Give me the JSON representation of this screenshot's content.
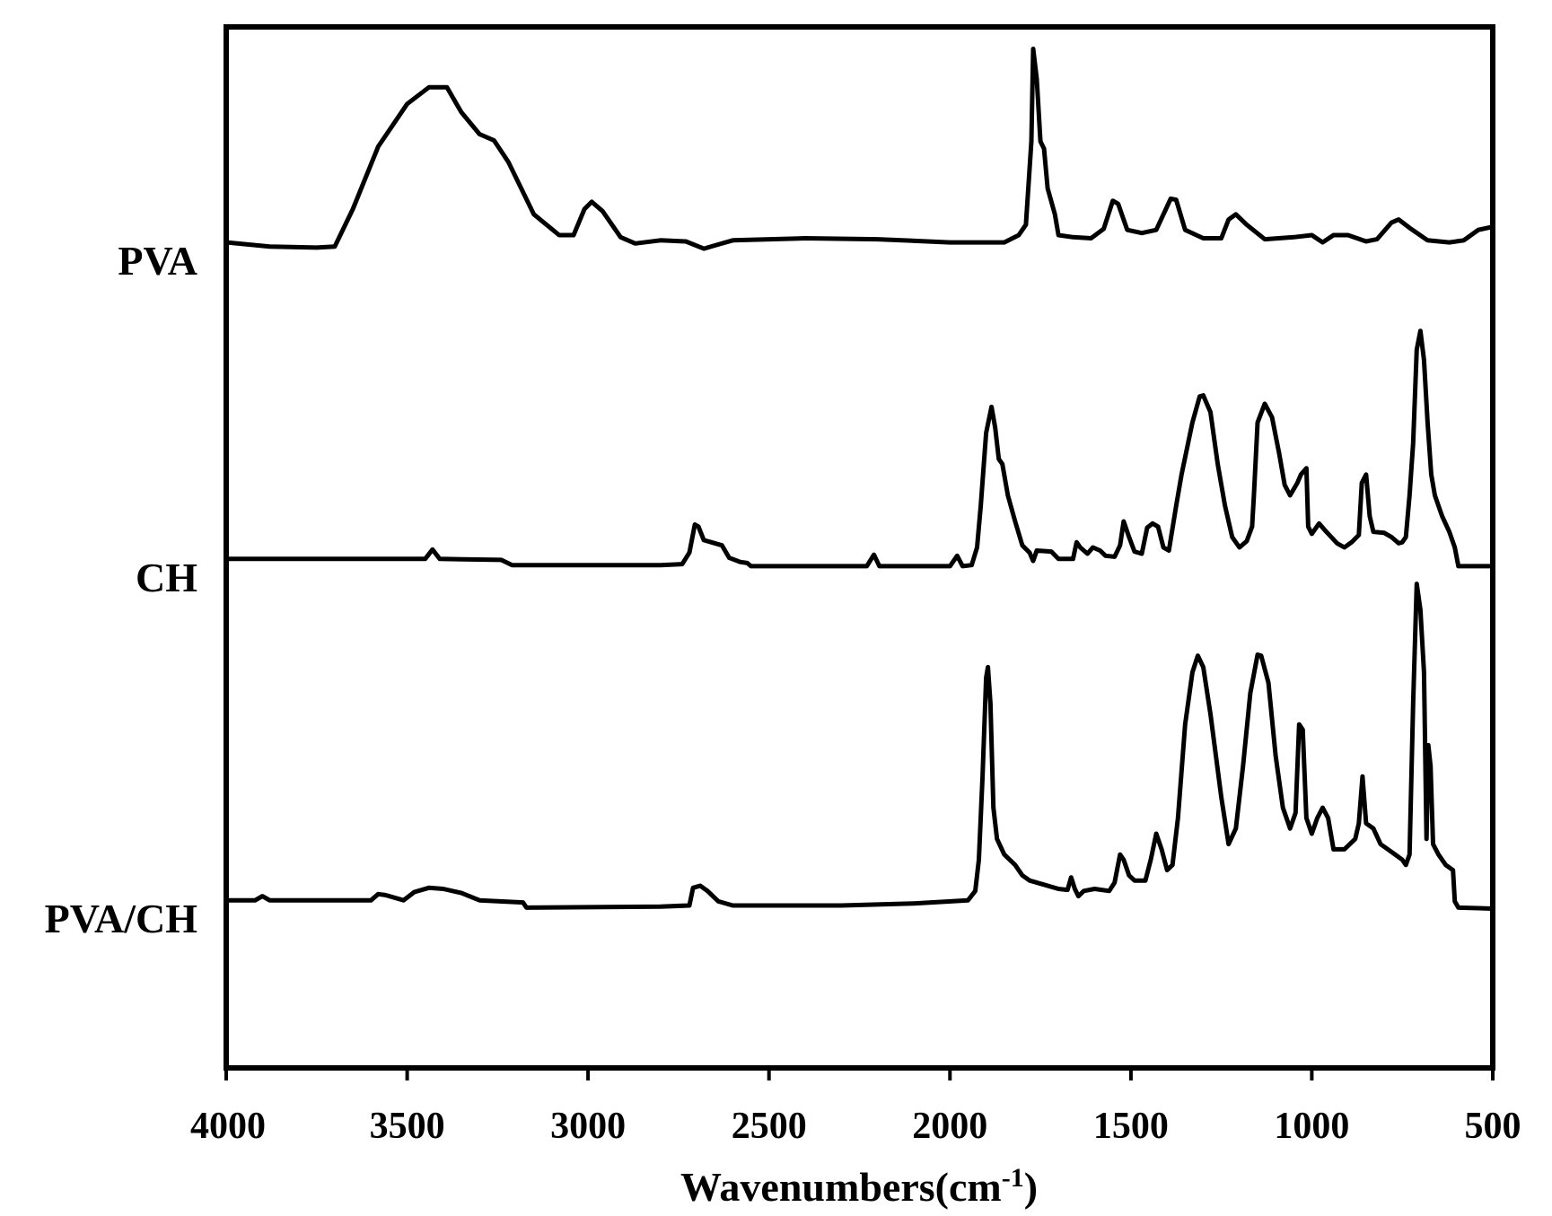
{
  "chart_data": {
    "type": "line",
    "title": "",
    "xlabel": {
      "main": "Wavenumbers(cm",
      "superscript": "-1",
      "close": ")"
    },
    "ylabel": "",
    "xlim": [
      4000,
      500
    ],
    "x_reversed": true,
    "xticks": [
      4000,
      3500,
      3000,
      2500,
      2000,
      1500,
      1000,
      500
    ],
    "xtick_labels": [
      "4000",
      "3500",
      "3000",
      "2500",
      "2000",
      "1500",
      "1000",
      "500"
    ],
    "ylim": [
      0,
      100
    ],
    "y_ticks_shown": false,
    "grid": false,
    "legend": "none",
    "series": [
      {
        "name": "PVA",
        "color": "#000000",
        "points": [
          [
            4000,
            79.3
          ],
          [
            3880,
            78.9
          ],
          [
            3750,
            78.8
          ],
          [
            3700,
            78.9
          ],
          [
            3650,
            82.5
          ],
          [
            3580,
            88.5
          ],
          [
            3500,
            92.6
          ],
          [
            3440,
            94.2
          ],
          [
            3390,
            94.2
          ],
          [
            3350,
            91.8
          ],
          [
            3300,
            89.7
          ],
          [
            3260,
            89.1
          ],
          [
            3220,
            87.0
          ],
          [
            3150,
            82.0
          ],
          [
            3080,
            80.0
          ],
          [
            3040,
            80.0
          ],
          [
            3010,
            82.5
          ],
          [
            2990,
            83.2
          ],
          [
            2960,
            82.3
          ],
          [
            2910,
            79.8
          ],
          [
            2870,
            79.2
          ],
          [
            2800,
            79.5
          ],
          [
            2730,
            79.4
          ],
          [
            2680,
            78.7
          ],
          [
            2640,
            79.1
          ],
          [
            2600,
            79.5
          ],
          [
            2400,
            79.7
          ],
          [
            2200,
            79.6
          ],
          [
            2000,
            79.3
          ],
          [
            1850,
            79.3
          ],
          [
            1810,
            80.0
          ],
          [
            1790,
            81.0
          ],
          [
            1775,
            89.0
          ],
          [
            1770,
            97.9
          ],
          [
            1760,
            95.0
          ],
          [
            1750,
            89.0
          ],
          [
            1740,
            88.3
          ],
          [
            1730,
            84.5
          ],
          [
            1710,
            82.0
          ],
          [
            1700,
            80.0
          ],
          [
            1660,
            79.8
          ],
          [
            1610,
            79.7
          ],
          [
            1575,
            80.6
          ],
          [
            1550,
            83.3
          ],
          [
            1535,
            83.0
          ],
          [
            1510,
            80.5
          ],
          [
            1470,
            80.2
          ],
          [
            1430,
            80.5
          ],
          [
            1390,
            83.5
          ],
          [
            1375,
            83.4
          ],
          [
            1350,
            80.5
          ],
          [
            1300,
            79.7
          ],
          [
            1250,
            79.7
          ],
          [
            1230,
            81.5
          ],
          [
            1210,
            82.0
          ],
          [
            1180,
            81.0
          ],
          [
            1130,
            79.6
          ],
          [
            1050,
            79.8
          ],
          [
            1000,
            80.0
          ],
          [
            970,
            79.3
          ],
          [
            940,
            80.0
          ],
          [
            900,
            80.0
          ],
          [
            850,
            79.4
          ],
          [
            820,
            79.6
          ],
          [
            780,
            81.2
          ],
          [
            760,
            81.5
          ],
          [
            730,
            80.7
          ],
          [
            680,
            79.5
          ],
          [
            620,
            79.3
          ],
          [
            580,
            79.5
          ],
          [
            540,
            80.5
          ],
          [
            500,
            80.8
          ]
        ]
      },
      {
        "name": "CH",
        "color": "#000000",
        "points": [
          [
            4000,
            48.9
          ],
          [
            3600,
            48.9
          ],
          [
            3450,
            48.9
          ],
          [
            3430,
            49.8
          ],
          [
            3410,
            48.9
          ],
          [
            3240,
            48.8
          ],
          [
            3210,
            48.3
          ],
          [
            3000,
            48.3
          ],
          [
            2800,
            48.3
          ],
          [
            2740,
            48.4
          ],
          [
            2720,
            49.5
          ],
          [
            2705,
            52.2
          ],
          [
            2695,
            52.0
          ],
          [
            2680,
            50.7
          ],
          [
            2660,
            50.5
          ],
          [
            2630,
            50.2
          ],
          [
            2610,
            49.0
          ],
          [
            2580,
            48.6
          ],
          [
            2560,
            48.5
          ],
          [
            2550,
            48.2
          ],
          [
            2230,
            48.2
          ],
          [
            2210,
            49.3
          ],
          [
            2195,
            48.2
          ],
          [
            2000,
            48.2
          ],
          [
            1980,
            49.2
          ],
          [
            1965,
            48.2
          ],
          [
            1940,
            48.3
          ],
          [
            1925,
            50.0
          ],
          [
            1915,
            54.0
          ],
          [
            1900,
            61.0
          ],
          [
            1885,
            63.5
          ],
          [
            1875,
            61.5
          ],
          [
            1865,
            58.5
          ],
          [
            1855,
            58.0
          ],
          [
            1840,
            55.0
          ],
          [
            1820,
            52.5
          ],
          [
            1800,
            50.2
          ],
          [
            1780,
            49.5
          ],
          [
            1770,
            48.7
          ],
          [
            1760,
            49.7
          ],
          [
            1720,
            49.6
          ],
          [
            1700,
            48.9
          ],
          [
            1660,
            48.9
          ],
          [
            1650,
            50.5
          ],
          [
            1640,
            50.0
          ],
          [
            1620,
            49.4
          ],
          [
            1605,
            50.0
          ],
          [
            1585,
            49.7
          ],
          [
            1570,
            49.2
          ],
          [
            1545,
            49.1
          ],
          [
            1530,
            50.2
          ],
          [
            1520,
            52.5
          ],
          [
            1505,
            51.0
          ],
          [
            1490,
            49.6
          ],
          [
            1470,
            49.4
          ],
          [
            1455,
            51.9
          ],
          [
            1440,
            52.3
          ],
          [
            1425,
            52.0
          ],
          [
            1410,
            50.0
          ],
          [
            1395,
            49.7
          ],
          [
            1375,
            54.0
          ],
          [
            1360,
            57.0
          ],
          [
            1330,
            62.0
          ],
          [
            1310,
            64.5
          ],
          [
            1300,
            64.6
          ],
          [
            1280,
            63.0
          ],
          [
            1260,
            58.0
          ],
          [
            1240,
            54.0
          ],
          [
            1220,
            51.0
          ],
          [
            1200,
            50.0
          ],
          [
            1180,
            50.6
          ],
          [
            1165,
            52.0
          ],
          [
            1160,
            55.0
          ],
          [
            1150,
            62.0
          ],
          [
            1130,
            63.8
          ],
          [
            1110,
            62.5
          ],
          [
            1090,
            59.0
          ],
          [
            1075,
            56.0
          ],
          [
            1060,
            55.0
          ],
          [
            1040,
            56.2
          ],
          [
            1030,
            57.0
          ],
          [
            1015,
            57.6
          ],
          [
            1010,
            52.0
          ],
          [
            1000,
            51.3
          ],
          [
            980,
            52.3
          ],
          [
            960,
            51.5
          ],
          [
            930,
            50.4
          ],
          [
            910,
            50.0
          ],
          [
            890,
            50.5
          ],
          [
            870,
            51.2
          ],
          [
            862,
            56.2
          ],
          [
            850,
            57.0
          ],
          [
            840,
            53.0
          ],
          [
            830,
            51.5
          ],
          [
            800,
            51.4
          ],
          [
            780,
            51.0
          ],
          [
            760,
            50.4
          ],
          [
            750,
            50.5
          ],
          [
            740,
            51.0
          ],
          [
            730,
            55.0
          ],
          [
            720,
            60.0
          ],
          [
            710,
            69.0
          ],
          [
            700,
            70.8
          ],
          [
            690,
            68.0
          ],
          [
            680,
            62.0
          ],
          [
            670,
            57.0
          ],
          [
            660,
            55.0
          ],
          [
            640,
            53.0
          ],
          [
            620,
            51.5
          ],
          [
            605,
            50.0
          ],
          [
            595,
            48.2
          ],
          [
            500,
            48.2
          ]
        ]
      },
      {
        "name": "PVA/CH",
        "color": "#000000",
        "points": [
          [
            4000,
            16.1
          ],
          [
            3920,
            16.1
          ],
          [
            3900,
            16.5
          ],
          [
            3880,
            16.1
          ],
          [
            3600,
            16.1
          ],
          [
            3580,
            16.7
          ],
          [
            3560,
            16.6
          ],
          [
            3510,
            16.1
          ],
          [
            3480,
            16.9
          ],
          [
            3440,
            17.3
          ],
          [
            3400,
            17.2
          ],
          [
            3350,
            16.8
          ],
          [
            3300,
            16.1
          ],
          [
            3180,
            15.9
          ],
          [
            3170,
            15.4
          ],
          [
            2800,
            15.5
          ],
          [
            2720,
            15.6
          ],
          [
            2710,
            17.3
          ],
          [
            2690,
            17.5
          ],
          [
            2670,
            17.0
          ],
          [
            2640,
            16.0
          ],
          [
            2600,
            15.6
          ],
          [
            2300,
            15.6
          ],
          [
            2100,
            15.8
          ],
          [
            1950,
            16.1
          ],
          [
            1930,
            17.0
          ],
          [
            1920,
            20.0
          ],
          [
            1910,
            28.0
          ],
          [
            1900,
            37.5
          ],
          [
            1895,
            38.5
          ],
          [
            1888,
            35.0
          ],
          [
            1880,
            25.0
          ],
          [
            1870,
            22.0
          ],
          [
            1850,
            20.5
          ],
          [
            1820,
            19.5
          ],
          [
            1800,
            18.5
          ],
          [
            1780,
            18.0
          ],
          [
            1740,
            17.6
          ],
          [
            1700,
            17.2
          ],
          [
            1675,
            17.1
          ],
          [
            1665,
            18.3
          ],
          [
            1655,
            17.2
          ],
          [
            1645,
            16.5
          ],
          [
            1630,
            17.0
          ],
          [
            1600,
            17.2
          ],
          [
            1560,
            17.0
          ],
          [
            1545,
            17.8
          ],
          [
            1530,
            20.5
          ],
          [
            1520,
            20.0
          ],
          [
            1505,
            18.5
          ],
          [
            1490,
            18.0
          ],
          [
            1460,
            18.0
          ],
          [
            1445,
            20.0
          ],
          [
            1430,
            22.5
          ],
          [
            1415,
            21.0
          ],
          [
            1400,
            19.0
          ],
          [
            1385,
            19.5
          ],
          [
            1370,
            24.0
          ],
          [
            1350,
            33.0
          ],
          [
            1330,
            38.0
          ],
          [
            1315,
            39.6
          ],
          [
            1300,
            38.5
          ],
          [
            1280,
            34.0
          ],
          [
            1250,
            26.0
          ],
          [
            1230,
            21.5
          ],
          [
            1210,
            23.0
          ],
          [
            1190,
            29.0
          ],
          [
            1170,
            36.0
          ],
          [
            1150,
            39.7
          ],
          [
            1140,
            39.6
          ],
          [
            1120,
            37.0
          ],
          [
            1100,
            30.0
          ],
          [
            1080,
            25.0
          ],
          [
            1060,
            23.0
          ],
          [
            1045,
            24.5
          ],
          [
            1035,
            33.0
          ],
          [
            1025,
            32.5
          ],
          [
            1015,
            24.0
          ],
          [
            1000,
            22.5
          ],
          [
            985,
            24.0
          ],
          [
            970,
            25.0
          ],
          [
            955,
            24.0
          ],
          [
            940,
            21.0
          ],
          [
            910,
            21.0
          ],
          [
            880,
            22.0
          ],
          [
            870,
            23.5
          ],
          [
            860,
            28.0
          ],
          [
            850,
            23.5
          ],
          [
            830,
            23.0
          ],
          [
            810,
            21.5
          ],
          [
            790,
            21.0
          ],
          [
            770,
            20.5
          ],
          [
            750,
            20.0
          ],
          [
            740,
            19.5
          ],
          [
            730,
            20.5
          ],
          [
            720,
            35.0
          ],
          [
            710,
            46.5
          ],
          [
            700,
            44.0
          ],
          [
            690,
            38.0
          ],
          [
            683,
            22.0
          ],
          [
            678,
            31.0
          ],
          [
            672,
            29.0
          ],
          [
            665,
            21.5
          ],
          [
            650,
            20.5
          ],
          [
            630,
            19.5
          ],
          [
            610,
            19.0
          ],
          [
            605,
            16.0
          ],
          [
            595,
            15.4
          ],
          [
            500,
            15.3
          ]
        ]
      }
    ]
  }
}
